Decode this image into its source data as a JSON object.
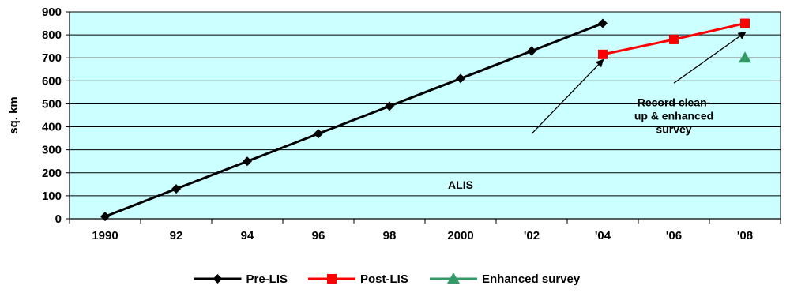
{
  "chart_data": {
    "type": "line",
    "title": "",
    "xlabel": "",
    "ylabel": "sq. km",
    "categories": [
      "1990",
      "92",
      "94",
      "96",
      "98",
      "2000",
      "'02",
      "'04",
      "'06",
      "'08"
    ],
    "ylim": [
      0,
      900
    ],
    "yticks": [
      0,
      100,
      200,
      300,
      400,
      500,
      600,
      700,
      800,
      900
    ],
    "grid": "horizontal",
    "plot_background": "#ccffff",
    "legend_position": "bottom",
    "series": [
      {
        "name": "Pre-LIS",
        "color": "#000000",
        "marker": "diamond",
        "values": [
          10,
          130,
          250,
          370,
          490,
          610,
          730,
          850,
          null,
          null
        ]
      },
      {
        "name": "Post-LIS",
        "color": "#ff0000",
        "marker": "square",
        "values": [
          null,
          null,
          null,
          null,
          null,
          null,
          null,
          715,
          780,
          850
        ]
      },
      {
        "name": "Enhanced survey",
        "color": "#339966",
        "marker": "triangle",
        "values": [
          null,
          null,
          null,
          null,
          null,
          null,
          null,
          null,
          null,
          700
        ]
      }
    ],
    "annotations": [
      {
        "lines": [
          "ALIS"
        ],
        "text_at": {
          "x": "2000",
          "y": 130
        },
        "arrow_from": {
          "x": "'02",
          "y": 370
        },
        "arrow_to": {
          "x": "'04",
          "y": 690
        }
      },
      {
        "lines": [
          "Record clean-",
          "up & enhanced",
          "survey"
        ],
        "text_at": {
          "x": "'06",
          "y": 490
        },
        "arrow_from": {
          "x": "'06",
          "y": 590
        },
        "arrow_to": {
          "x": "'08",
          "y": 810
        }
      }
    ]
  }
}
